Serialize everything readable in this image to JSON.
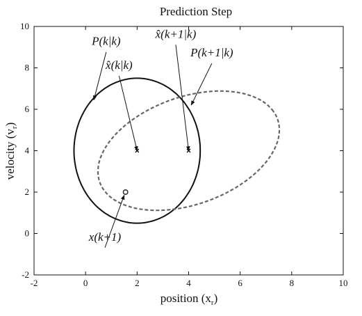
{
  "chart_data": {
    "type": "scatter",
    "title": "Prediction Step",
    "xlabel": "position (x",
    "xlabel_sub": "r",
    "xlabel_close": ")",
    "ylabel": "velocity (v",
    "ylabel_sub": "r",
    "ylabel_close": ")",
    "xlim": [
      -2,
      10
    ],
    "ylim": [
      -2,
      10
    ],
    "x_ticks": [
      -2,
      0,
      2,
      4,
      6,
      8,
      10
    ],
    "y_ticks": [
      -2,
      0,
      2,
      4,
      6,
      8,
      10
    ],
    "grid": false,
    "ellipses": [
      {
        "label": "P(k|k)",
        "center": [
          2.0,
          4.0
        ],
        "rx": 2.45,
        "ry": 3.5,
        "angle": 0,
        "style": "solid",
        "color": "#111111"
      },
      {
        "label": "P(k+1|k)",
        "center": [
          4.0,
          4.0
        ],
        "rx": 3.8,
        "ry": 2.5,
        "angle": 30,
        "style": "dashed",
        "color": "#666666"
      }
    ],
    "points": [
      {
        "label": "x̂(k|k)",
        "x": 2.0,
        "y": 4.0,
        "marker": "x"
      },
      {
        "label": "x̂(k+1|k)",
        "x": 4.0,
        "y": 4.0,
        "marker": "x"
      },
      {
        "label": "x(k+1)",
        "x": 1.55,
        "y": 2.0,
        "marker": "o"
      }
    ],
    "annotations": [
      {
        "text": "P(k|k)",
        "text_at": [
          0.8,
          8.9
        ],
        "arrow_to": [
          0.32,
          6.45
        ]
      },
      {
        "text": "x̂(k|k)",
        "text_at": [
          1.3,
          7.75
        ],
        "arrow_to": [
          2.0,
          4.0
        ]
      },
      {
        "text": "x̂(k+1|k)",
        "text_at": [
          3.5,
          9.25
        ],
        "arrow_to": [
          4.0,
          4.0
        ]
      },
      {
        "text": "P(k+1|k)",
        "text_at": [
          4.9,
          8.35
        ],
        "arrow_to": [
          4.1,
          6.2
        ]
      },
      {
        "text": "x(k+1)",
        "text_at": [
          0.75,
          -0.55
        ],
        "arrow_to": [
          1.5,
          1.85
        ]
      }
    ]
  }
}
